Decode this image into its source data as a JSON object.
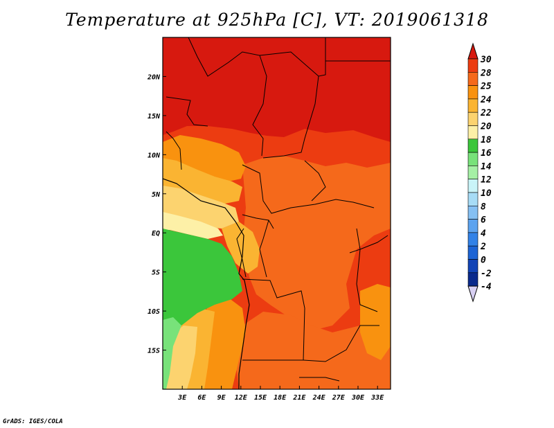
{
  "title": "Temperature at 925hPa [C], VT: 2019061318",
  "credit": "GrADS: IGES/COLA",
  "map": {
    "lon_range": [
      0,
      35
    ],
    "lat_range": [
      -20,
      25
    ],
    "x_ticks": [
      {
        "value": 3,
        "label": "3E"
      },
      {
        "value": 6,
        "label": "6E"
      },
      {
        "value": 9,
        "label": "9E"
      },
      {
        "value": 12,
        "label": "12E"
      },
      {
        "value": 15,
        "label": "15E"
      },
      {
        "value": 18,
        "label": "18E"
      },
      {
        "value": 21,
        "label": "21E"
      },
      {
        "value": 24,
        "label": "24E"
      },
      {
        "value": 27,
        "label": "27E"
      },
      {
        "value": 30,
        "label": "30E"
      },
      {
        "value": 33,
        "label": "33E"
      }
    ],
    "y_ticks": [
      {
        "value": 20,
        "label": "20N"
      },
      {
        "value": 15,
        "label": "15N"
      },
      {
        "value": 10,
        "label": "10N"
      },
      {
        "value": 5,
        "label": "5N"
      },
      {
        "value": 0,
        "label": "EQ"
      },
      {
        "value": -5,
        "label": "5S"
      },
      {
        "value": -10,
        "label": "10S"
      },
      {
        "value": -15,
        "label": "15S"
      }
    ]
  },
  "colorbar": {
    "labels": [
      "30",
      "28",
      "25",
      "24",
      "22",
      "20",
      "18",
      "16",
      "14",
      "12",
      "10",
      "8",
      "6",
      "4",
      "2",
      "0",
      "-2",
      "-4"
    ],
    "colors": [
      "#d7190f",
      "#ec3c11",
      "#f5691b",
      "#f9920f",
      "#fab432",
      "#fcd36f",
      "#fdf0a7",
      "#3bc63b",
      "#78e27a",
      "#a5f0a5",
      "#c9f4f8",
      "#a7dcf6",
      "#85c0f3",
      "#5ca3ef",
      "#3282e7",
      "#1d64d5",
      "#1244b6",
      "#0a2a8c",
      "#090f5c",
      "#d8d0f3"
    ]
  },
  "palette": {
    "t30": "#d7190f",
    "t28": "#ec3c11",
    "t25": "#f5691b",
    "t24": "#f9920f",
    "t22": "#fab432",
    "t20": "#fcd36f",
    "t18": "#fdf0a7",
    "t16": "#3bc63b",
    "t14": "#78e27a"
  }
}
